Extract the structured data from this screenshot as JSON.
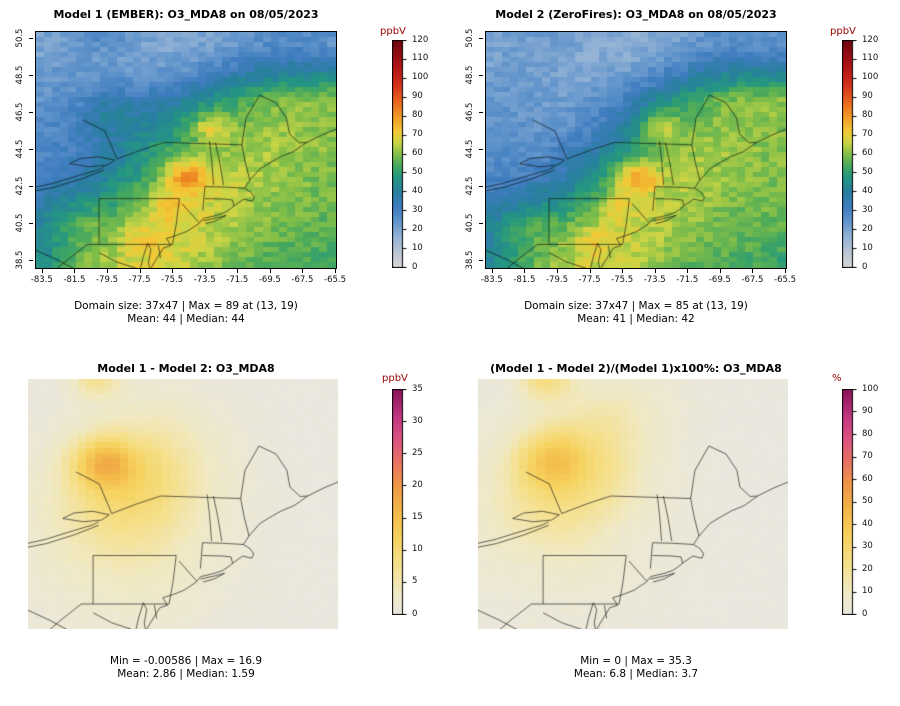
{
  "colors": {
    "unit_label": "#990000",
    "background": "#ffffff",
    "map_frame": "#000000"
  },
  "chart_data": [
    {
      "type": "heatmap",
      "model": "Model 1 (EMBER)",
      "variable": "O3_MDA8",
      "date": "08/05/2023",
      "title": "Model 1 (EMBER): O3_MDA8 on 08/05/2023",
      "colorbar": {
        "unit": "ppbV",
        "min": 0,
        "max": 120,
        "ticks": [
          0,
          10,
          20,
          30,
          40,
          50,
          60,
          70,
          80,
          90,
          100,
          110,
          120
        ]
      },
      "x_axis": {
        "ticks": [
          -83.5,
          -81.5,
          -79.5,
          -77.5,
          -75.5,
          -73.5,
          -71.5,
          -69.5,
          -67.5,
          -65.5
        ]
      },
      "y_axis": {
        "ticks": [
          38.5,
          40.5,
          42.5,
          44.5,
          46.5,
          48.5,
          50.5
        ]
      },
      "stats": {
        "domain_size": "37x47",
        "max": 89,
        "max_at": "(13, 19)",
        "mean": 44,
        "median": 44
      },
      "stats_line1": "Domain size: 37x47 | Max = 89 at (13, 19)",
      "stats_line2": "Mean: 44 | Median: 44"
    },
    {
      "type": "heatmap",
      "model": "Model 2 (ZeroFires)",
      "variable": "O3_MDA8",
      "date": "08/05/2023",
      "title": "Model 2 (ZeroFires): O3_MDA8 on 08/05/2023",
      "colorbar": {
        "unit": "ppbV",
        "min": 0,
        "max": 120,
        "ticks": [
          0,
          10,
          20,
          30,
          40,
          50,
          60,
          70,
          80,
          90,
          100,
          110,
          120
        ]
      },
      "x_axis": {
        "ticks": [
          -83.5,
          -81.5,
          -79.5,
          -77.5,
          -75.5,
          -73.5,
          -71.5,
          -69.5,
          -67.5,
          -65.5
        ]
      },
      "y_axis": {
        "ticks": [
          38.5,
          40.5,
          42.5,
          44.5,
          46.5,
          48.5,
          50.5
        ]
      },
      "stats": {
        "domain_size": "37x47",
        "max": 85,
        "max_at": "(13, 19)",
        "mean": 41,
        "median": 42
      },
      "stats_line1": "Domain size: 37x47 | Max = 85 at (13, 19)",
      "stats_line2": "Mean: 41 | Median: 42"
    },
    {
      "type": "heatmap",
      "model": "Model 1 - Model 2",
      "variable": "O3_MDA8",
      "title": "Model 1 - Model 2: O3_MDA8",
      "colorbar": {
        "unit": "ppbV",
        "min": 0,
        "max": 35,
        "ticks": [
          0,
          5,
          10,
          15,
          20,
          25,
          30,
          35
        ]
      },
      "x_axis": {
        "ticks": []
      },
      "y_axis": {
        "ticks": []
      },
      "stats": {
        "min": -0.00586,
        "max": 16.9,
        "mean": 2.86,
        "median": 1.59
      },
      "stats_line1": "Min = -0.00586 | Max = 16.9",
      "stats_line2": "Mean: 2.86 | Median: 1.59"
    },
    {
      "type": "heatmap",
      "model": "(Model 1 - Model 2)/(Model 1)x100%",
      "variable": "O3_MDA8",
      "title": "(Model 1 - Model 2)/(Model 1)x100%: O3_MDA8",
      "colorbar": {
        "unit": "%",
        "min": 0,
        "max": 100,
        "ticks": [
          0,
          10,
          20,
          30,
          40,
          50,
          60,
          70,
          80,
          90,
          100
        ]
      },
      "x_axis": {
        "ticks": []
      },
      "y_axis": {
        "ticks": []
      },
      "stats": {
        "min": 0,
        "max": 35.3,
        "mean": 6.8,
        "median": 3.7
      },
      "stats_line1": "Min = 0 | Max = 35.3",
      "stats_line2": "Mean: 6.8 | Median: 3.7"
    }
  ]
}
